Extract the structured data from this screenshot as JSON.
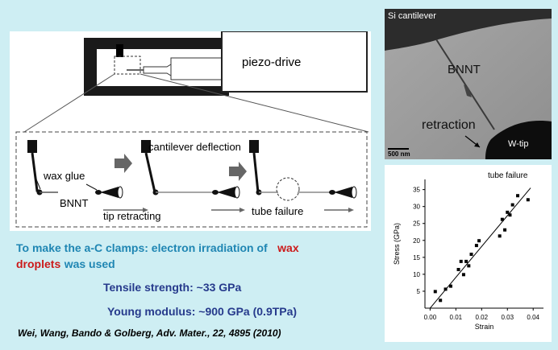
{
  "schematic": {
    "piezo_label": "piezo-drive",
    "cantilever_label": "cantilever deflection",
    "glue_label": "wax glue",
    "bnnt_label": "BNNT",
    "retract_label": "tip retracting",
    "failure_label": "tube failure"
  },
  "tem": {
    "si_label": "Si cantilever",
    "bnnt_label": "BNNT",
    "retraction_label": "retraction",
    "wtip_label": "W-tip",
    "scale_label": "500 nm"
  },
  "text": {
    "line1_a": "To make the a-C clamps: electron irradiation of",
    "line1_b": "wax",
    "line2_a": "droplets",
    "line2_b": "was used",
    "tensile": "Tensile strength:  ~33 GPa",
    "modulus": "Young modulus:  ~900 GPa (0.9TPa)",
    "citation": "Wei, Wang, Bando & Golberg, Adv. Mater., 22, 4895 (2010)"
  },
  "chart_data": {
    "type": "scatter",
    "title": "",
    "annotation": "tube failure",
    "xlabel": "Strain",
    "ylabel": "Stress (GPa)",
    "xlim": [
      -0.002,
      0.044
    ],
    "ylim": [
      0,
      38
    ],
    "xticks": [
      "0.00",
      "0.01",
      "0.02",
      "0.03",
      "0.04"
    ],
    "yticks": [
      "5",
      "10",
      "15",
      "20",
      "25",
      "30",
      "35"
    ],
    "points": [
      {
        "x": 0.002,
        "y": 4.9
      },
      {
        "x": 0.004,
        "y": 2.3
      },
      {
        "x": 0.006,
        "y": 5.6
      },
      {
        "x": 0.008,
        "y": 6.5
      },
      {
        "x": 0.011,
        "y": 11.4
      },
      {
        "x": 0.012,
        "y": 13.8
      },
      {
        "x": 0.013,
        "y": 9.9
      },
      {
        "x": 0.014,
        "y": 13.8
      },
      {
        "x": 0.015,
        "y": 12.5
      },
      {
        "x": 0.016,
        "y": 15.9
      },
      {
        "x": 0.018,
        "y": 18.5
      },
      {
        "x": 0.019,
        "y": 19.9
      },
      {
        "x": 0.027,
        "y": 21.3
      },
      {
        "x": 0.028,
        "y": 26.2
      },
      {
        "x": 0.029,
        "y": 23.1
      },
      {
        "x": 0.03,
        "y": 28.3
      },
      {
        "x": 0.031,
        "y": 27.5
      },
      {
        "x": 0.032,
        "y": 30.5
      },
      {
        "x": 0.034,
        "y": 33.2
      },
      {
        "x": 0.038,
        "y": 32.0
      }
    ],
    "fit_line": {
      "x": [
        0.0,
        0.039
      ],
      "y": [
        0.0,
        35.5
      ]
    }
  }
}
